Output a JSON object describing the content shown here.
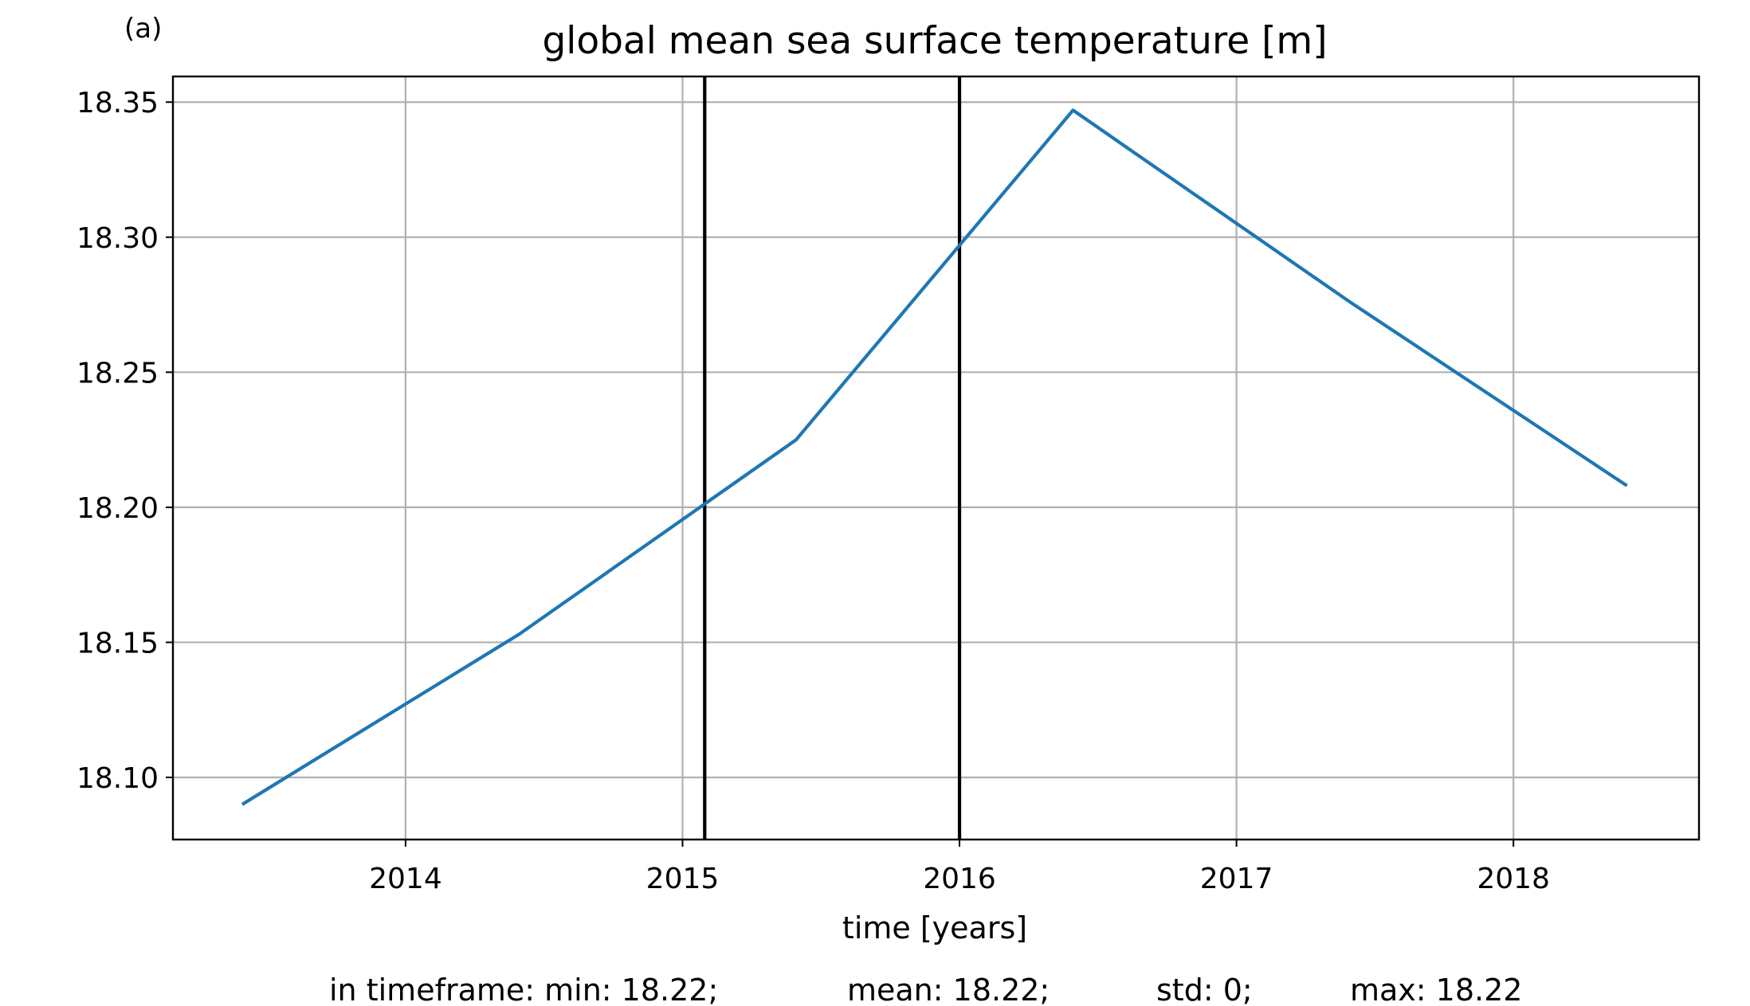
{
  "panel_label": "(a)",
  "stats_line": {
    "min": "in timeframe: min: 18.22;",
    "mean": "mean: 18.22;",
    "std": "std: 0;",
    "max": "max: 18.22"
  },
  "colors": {
    "series": "#1f77b4",
    "grid": "#b0b0b0",
    "frame": "#000000",
    "markers": "#000000"
  },
  "chart_data": {
    "type": "line",
    "title": "global mean sea surface temperature [m]",
    "xlabel": "time [years]",
    "ylabel": "",
    "grid": true,
    "xlim": [
      2013.16,
      2018.67
    ],
    "ylim": [
      18.077,
      18.3595
    ],
    "xticks": [
      2014,
      2015,
      2016,
      2017,
      2018
    ],
    "xtick_labels": [
      "2014",
      "2015",
      "2016",
      "2017",
      "2018"
    ],
    "yticks": [
      18.1,
      18.15,
      18.2,
      18.25,
      18.3,
      18.35
    ],
    "ytick_labels": [
      "18.10",
      "18.15",
      "18.20",
      "18.25",
      "18.30",
      "18.35"
    ],
    "vertical_lines": [
      2015.08,
      2016.0
    ],
    "series": [
      {
        "x": [
          2013.41,
          2014.41,
          2015.41,
          2016.41,
          2017.41,
          2018.41
        ],
        "y": [
          18.09,
          18.153,
          18.225,
          18.347,
          18.276,
          18.208
        ]
      }
    ]
  }
}
